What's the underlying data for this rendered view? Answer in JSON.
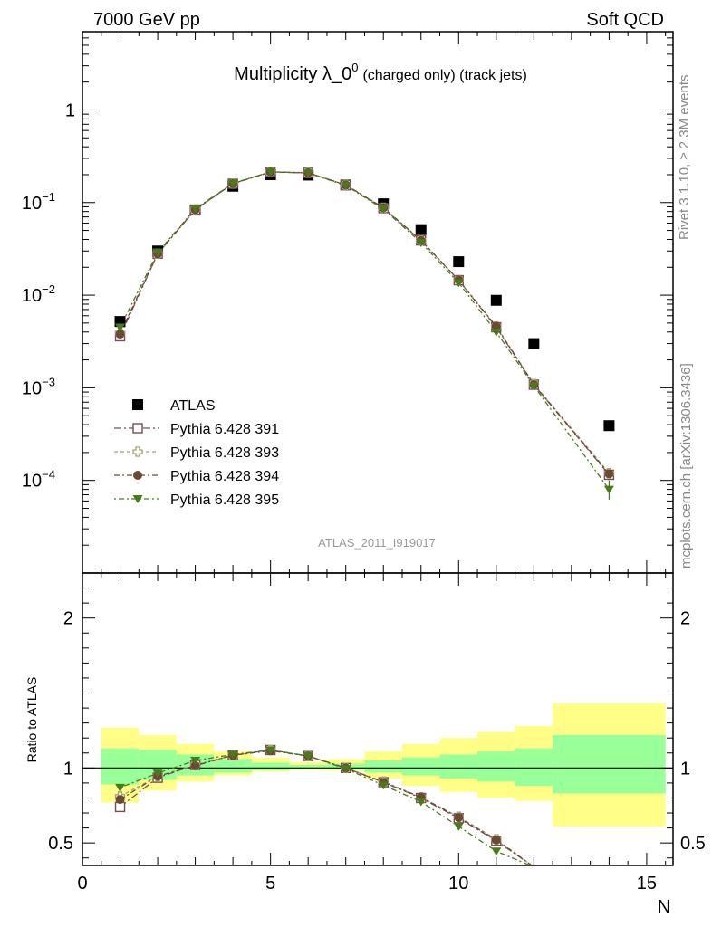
{
  "header": {
    "left": "7000 GeV pp",
    "right": "Soft QCD"
  },
  "title": {
    "main": "Multiplicity λ_0",
    "sup": "0",
    "sub": "(charged only) (track jets)"
  },
  "side_labels": {
    "rivet": "Rivet 3.1.10, ≥ 2.3M events",
    "mcplots": "mcplots.cern.ch [arXiv:1306.3436]"
  },
  "watermark": "ATLAS_2011_I919017",
  "colors": {
    "atlas": "#000000",
    "p391": "#7a4a55",
    "p393": "#a8a070",
    "p394": "#6b4a35",
    "p395": "#4a7a1a",
    "band_green": "#99ff99",
    "band_yellow": "#ffff88"
  },
  "chart_data": [
    {
      "type": "scatter",
      "panel": "main",
      "yscale": "log",
      "xlim": [
        0,
        15.7
      ],
      "ylim": [
        1e-05,
        7
      ],
      "xlabel": "N",
      "ylabel": "",
      "y_tick_labels": [
        "1",
        "10",
        "10",
        "10",
        "10"
      ],
      "y_tick_exponents": [
        "",
        "−1",
        "−2",
        "−3",
        "−4"
      ],
      "x_tick_labels": [
        "0",
        "5",
        "10",
        "15"
      ],
      "series": [
        {
          "name": "ATLAS",
          "marker": "square",
          "x": [
            1,
            2,
            3,
            4,
            5,
            6,
            7,
            8,
            9,
            10,
            11,
            12,
            14
          ],
          "values": [
            0.0052,
            0.03,
            0.083,
            0.15,
            0.2,
            0.198,
            0.155,
            0.097,
            0.051,
            0.023,
            0.0088,
            0.003,
            0.00039
          ]
        },
        {
          "name": "Pythia 6.428 391",
          "marker": "open-square",
          "x": [
            1,
            2,
            3,
            4,
            5,
            6,
            7,
            8,
            9,
            10,
            11,
            12,
            14
          ],
          "values": [
            0.0036,
            0.028,
            0.084,
            0.16,
            0.215,
            0.21,
            0.155,
            0.087,
            0.039,
            0.0145,
            0.0045,
            0.00108,
            0.000115
          ]
        },
        {
          "name": "Pythia 6.428 393",
          "marker": "open-cross",
          "x": [
            1,
            2,
            3,
            4,
            5,
            6,
            7,
            8,
            9,
            10,
            11,
            12,
            14
          ],
          "values": [
            0.0039,
            0.028,
            0.084,
            0.16,
            0.214,
            0.209,
            0.155,
            0.088,
            0.039,
            0.0146,
            0.0046,
            0.0011,
            0.00012
          ]
        },
        {
          "name": "Pythia 6.428 394",
          "marker": "circle",
          "x": [
            1,
            2,
            3,
            4,
            5,
            6,
            7,
            8,
            9,
            10,
            11,
            12,
            14
          ],
          "values": [
            0.0038,
            0.028,
            0.084,
            0.16,
            0.214,
            0.209,
            0.155,
            0.088,
            0.039,
            0.0146,
            0.0046,
            0.00108,
            0.000118
          ]
        },
        {
          "name": "Pythia 6.428 395",
          "marker": "triangle-down",
          "x": [
            1,
            2,
            3,
            4,
            5,
            6,
            7,
            8,
            9,
            10,
            11,
            12,
            14
          ],
          "values": [
            0.0045,
            0.029,
            0.086,
            0.161,
            0.215,
            0.208,
            0.153,
            0.085,
            0.037,
            0.0136,
            0.004,
            0.00105,
            8e-05
          ]
        }
      ],
      "legend": "center-left"
    },
    {
      "type": "scatter",
      "panel": "ratio",
      "xlim": [
        0,
        15.7
      ],
      "ylim": [
        0.35,
        2.3
      ],
      "xlabel": "N",
      "ylabel": "Ratio to ATLAS",
      "y_tick_labels": [
        "0.5",
        "1",
        "2"
      ],
      "y_tick_values": [
        0.5,
        1,
        2
      ],
      "x_tick_labels": [
        "0",
        "5",
        "10",
        "15"
      ],
      "bands": {
        "edges": [
          0.5,
          1.5,
          2.5,
          3.5,
          4.5,
          5.5,
          6.5,
          7.5,
          8.5,
          9.5,
          10.5,
          11.5,
          12.5,
          15.5
        ],
        "green_lo": [
          0.89,
          0.92,
          0.95,
          0.97,
          0.985,
          0.99,
          0.99,
          0.97,
          0.95,
          0.93,
          0.91,
          0.88,
          0.83
        ],
        "green_hi": [
          1.13,
          1.12,
          1.09,
          1.06,
          1.035,
          1.02,
          1.03,
          1.05,
          1.07,
          1.09,
          1.11,
          1.13,
          1.22
        ],
        "yellow_lo": [
          0.77,
          0.85,
          0.91,
          0.95,
          0.975,
          0.985,
          0.98,
          0.93,
          0.88,
          0.84,
          0.8,
          0.78,
          0.61
        ],
        "yellow_hi": [
          1.27,
          1.22,
          1.16,
          1.11,
          1.07,
          1.04,
          1.06,
          1.11,
          1.16,
          1.2,
          1.24,
          1.28,
          1.43
        ]
      },
      "series": [
        {
          "name": "Pythia 6.428 391",
          "x": [
            1,
            2,
            3,
            4,
            5,
            6,
            7,
            8,
            9,
            10,
            11,
            12
          ],
          "values": [
            0.74,
            0.935,
            1.02,
            1.085,
            1.12,
            1.08,
            1.0,
            0.905,
            0.8,
            0.665,
            0.515,
            0.34
          ]
        },
        {
          "name": "Pythia 6.428 393",
          "x": [
            1,
            2,
            3,
            4,
            5,
            6,
            7,
            8,
            9,
            10,
            11,
            12
          ],
          "values": [
            0.81,
            0.945,
            1.02,
            1.085,
            1.12,
            1.08,
            1.0,
            0.91,
            0.805,
            0.675,
            0.525,
            0.34
          ]
        },
        {
          "name": "Pythia 6.428 394",
          "x": [
            1,
            2,
            3,
            4,
            5,
            6,
            7,
            8,
            9,
            10,
            11,
            12
          ],
          "values": [
            0.79,
            0.945,
            1.015,
            1.085,
            1.115,
            1.08,
            1.0,
            0.905,
            0.805,
            0.67,
            0.52,
            0.34
          ]
        },
        {
          "name": "Pythia 6.428 395",
          "x": [
            1,
            2,
            3,
            4,
            5,
            6,
            7,
            8,
            9,
            10,
            11,
            12
          ],
          "values": [
            0.87,
            0.965,
            1.05,
            1.09,
            1.12,
            1.08,
            0.995,
            0.885,
            0.775,
            0.61,
            0.445,
            0.34
          ]
        }
      ]
    }
  ]
}
